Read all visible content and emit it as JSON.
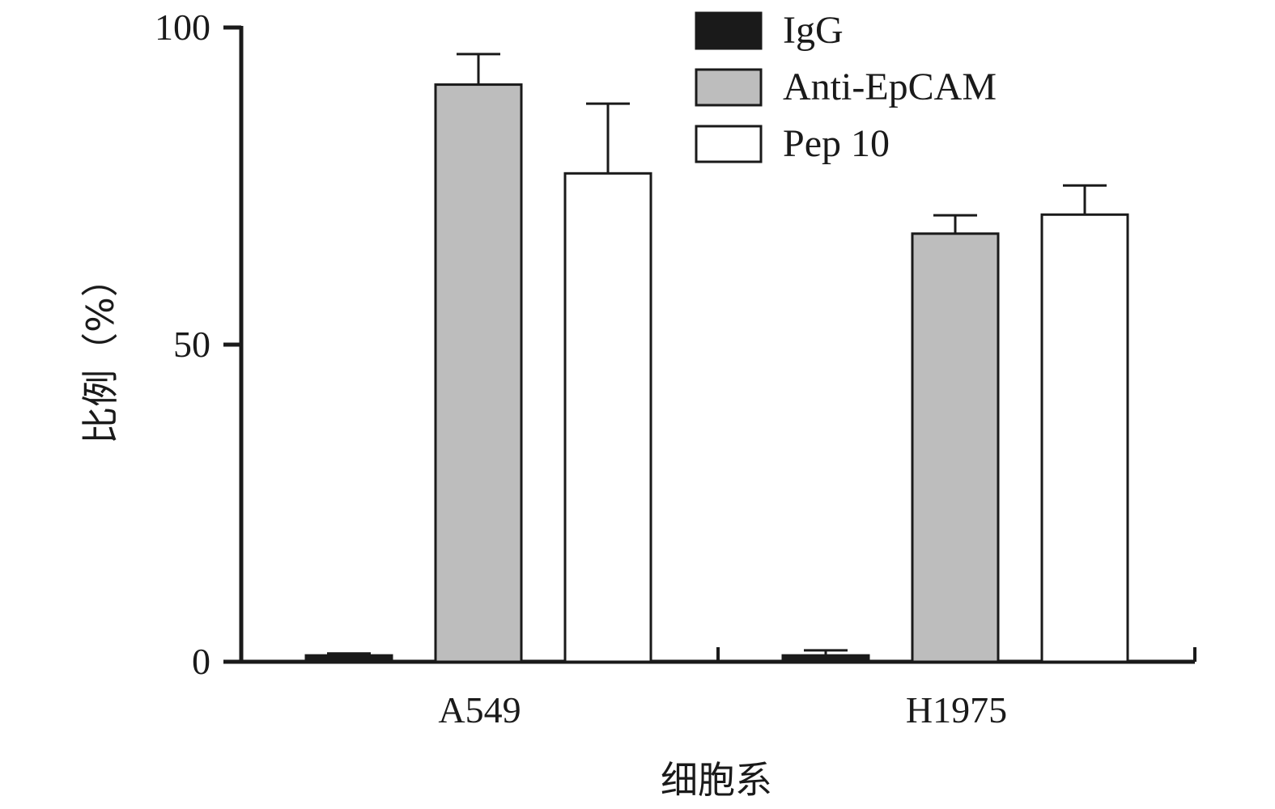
{
  "chart_data": {
    "type": "bar",
    "title": "",
    "xlabel": "细胞系",
    "ylabel": "比例（%）",
    "ylim": [
      0,
      100
    ],
    "yticks": [
      0,
      50,
      100
    ],
    "categories": [
      "A549",
      "H1975"
    ],
    "series": [
      {
        "name": "IgG",
        "color": "#1a1a1a",
        "values": [
          1.0,
          1.0
        ],
        "errors": [
          0.3,
          0.8
        ]
      },
      {
        "name": "Anti-EpCAM",
        "color": "#bdbdbd",
        "values": [
          91,
          67.5
        ],
        "errors": [
          4.8,
          2.9
        ]
      },
      {
        "name": "Pep 10",
        "color": "#ffffff",
        "values": [
          77,
          70.5
        ],
        "errors": [
          11,
          4.6
        ]
      }
    ],
    "grid": false,
    "legend_position": "top-right"
  }
}
